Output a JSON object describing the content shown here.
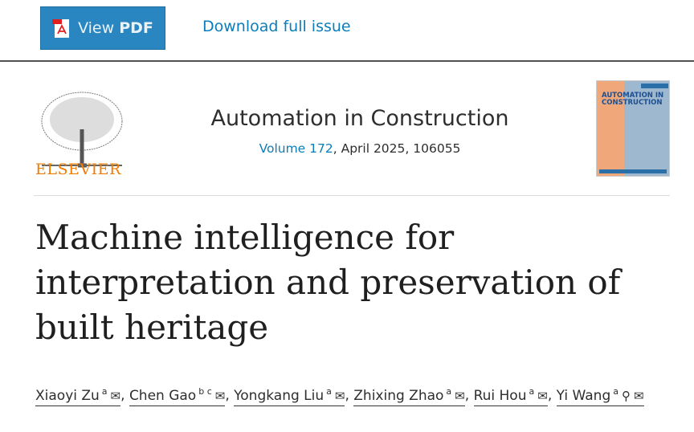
{
  "toolbar": {
    "view_pdf_prefix": "View",
    "view_pdf_bold": "PDF",
    "download_label": "Download full issue"
  },
  "publisher": {
    "name": "ELSEVIER",
    "logo_color": "#f07c00"
  },
  "journal": {
    "title": "Automation in Construction",
    "volume_link": "Volume 172",
    "issue_info": ", April 2025, 106055",
    "cover_text": "AUTOMATION IN CONSTRUCTION"
  },
  "article": {
    "title": "Machine intelligence for interpretation and preservation of built heritage"
  },
  "authors": [
    {
      "name": "Xiaoyi Zu",
      "aff": "a",
      "icons": [
        "envelope-icon"
      ]
    },
    {
      "name": "Chen Gao",
      "aff": "b c",
      "icons": [
        "envelope-icon"
      ]
    },
    {
      "name": "Yongkang Liu",
      "aff": "a",
      "icons": [
        "envelope-icon"
      ]
    },
    {
      "name": "Zhixing Zhao",
      "aff": "a",
      "icons": [
        "envelope-icon"
      ]
    },
    {
      "name": "Rui Hou",
      "aff": "a",
      "icons": [
        "envelope-icon"
      ]
    },
    {
      "name": "Yi Wang",
      "aff": "a",
      "icons": [
        "person-icon",
        "envelope-icon"
      ]
    }
  ],
  "colors": {
    "accent": "#2a86c0",
    "link": "#0c7dbb"
  }
}
